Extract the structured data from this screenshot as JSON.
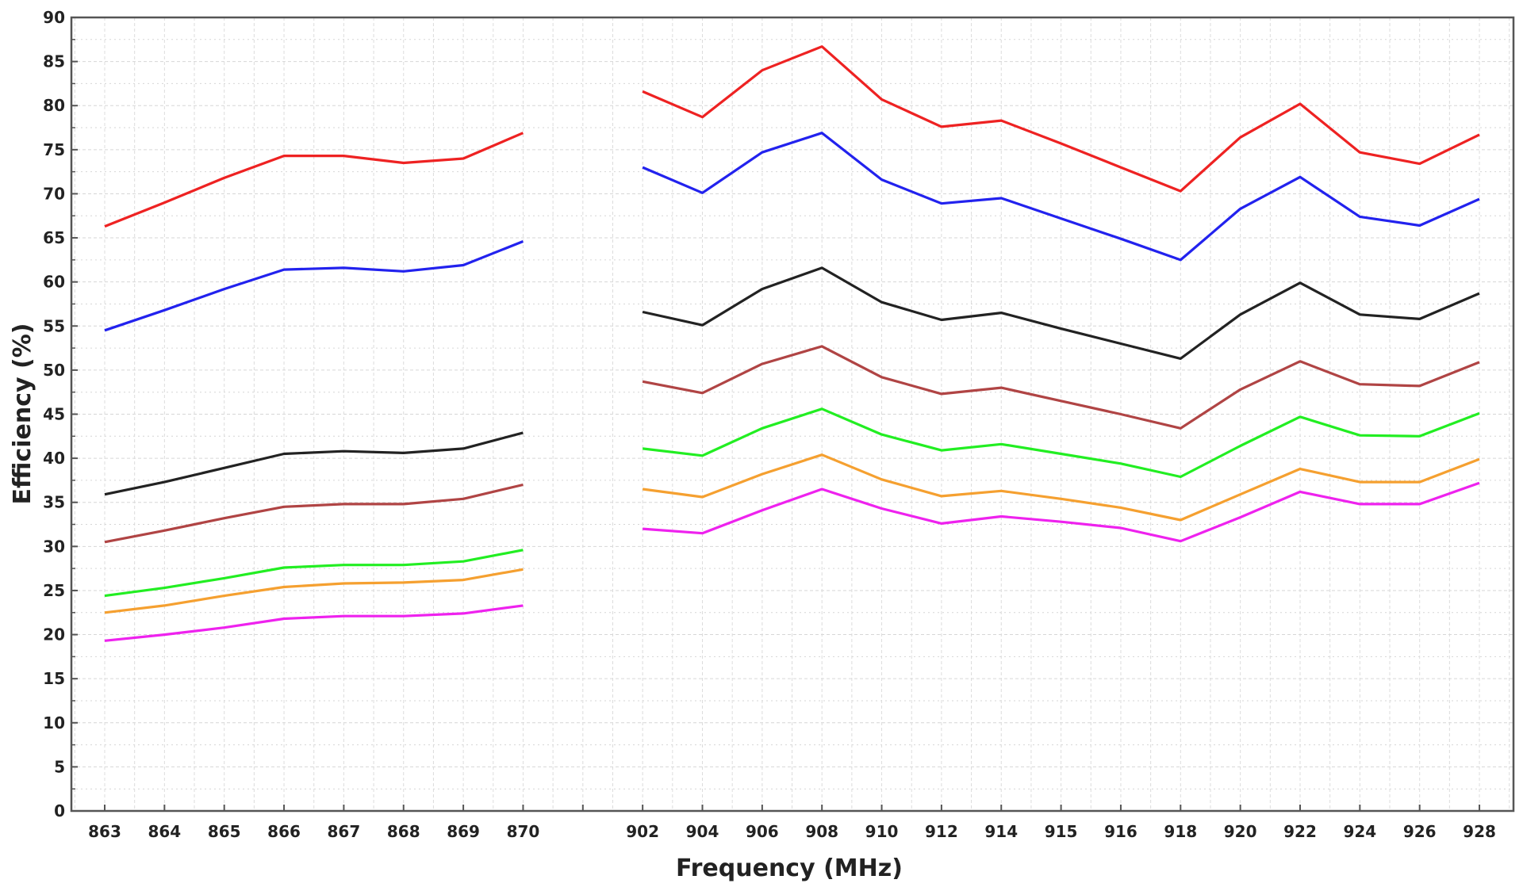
{
  "chart_data": {
    "type": "line",
    "xlabel": "Frequency (MHz)",
    "ylabel": "Efficiency (%)",
    "ylim": [
      0,
      90
    ],
    "y_ticks": [
      "0",
      "5",
      "10",
      "15",
      "20",
      "25",
      "30",
      "35",
      "40",
      "45",
      "50",
      "55",
      "60",
      "65",
      "70",
      "75",
      "80",
      "85",
      "90"
    ],
    "categories": [
      "863",
      "864",
      "865",
      "866",
      "867",
      "868",
      "869",
      "870",
      "",
      "902",
      "904",
      "906",
      "908",
      "910",
      "912",
      "914",
      "915",
      "916",
      "918",
      "920",
      "922",
      "924",
      "926",
      "928"
    ],
    "grid": true,
    "legend": "none",
    "series": [
      {
        "color": "#ee2222",
        "values": [
          66.3,
          69.0,
          71.8,
          74.3,
          74.3,
          73.5,
          74.0,
          76.9,
          null,
          81.6,
          78.7,
          84.0,
          86.7,
          80.7,
          77.6,
          78.3,
          75.7,
          73.0,
          70.3,
          76.4,
          80.2,
          74.7,
          73.4,
          76.7
        ]
      },
      {
        "color": "#2222ee",
        "values": [
          54.5,
          56.8,
          59.2,
          61.4,
          61.6,
          61.2,
          61.9,
          64.6,
          null,
          73.0,
          70.1,
          74.7,
          76.9,
          71.6,
          68.9,
          69.5,
          67.2,
          64.9,
          62.5,
          68.3,
          71.9,
          67.4,
          66.4,
          69.4
        ]
      },
      {
        "color": "#222222",
        "values": [
          35.9,
          37.3,
          38.9,
          40.5,
          40.8,
          40.6,
          41.1,
          42.9,
          null,
          56.6,
          55.1,
          59.2,
          61.6,
          57.7,
          55.7,
          56.5,
          54.7,
          53.0,
          51.3,
          56.3,
          59.9,
          56.3,
          55.8,
          58.7
        ]
      },
      {
        "color": "#b04444",
        "values": [
          30.5,
          31.8,
          33.2,
          34.5,
          34.8,
          34.8,
          35.4,
          37.0,
          null,
          48.7,
          47.4,
          50.7,
          52.7,
          49.2,
          47.3,
          48.0,
          46.5,
          45.0,
          43.4,
          47.8,
          51.0,
          48.4,
          48.2,
          50.9
        ]
      },
      {
        "color": "#22ee22",
        "values": [
          24.4,
          25.3,
          26.4,
          27.6,
          27.9,
          27.9,
          28.3,
          29.6,
          null,
          41.1,
          40.3,
          43.4,
          45.6,
          42.7,
          40.9,
          41.6,
          40.5,
          39.4,
          37.9,
          41.4,
          44.7,
          42.6,
          42.5,
          45.1
        ]
      },
      {
        "color": "#f5a030",
        "values": [
          22.5,
          23.3,
          24.4,
          25.4,
          25.8,
          25.9,
          26.2,
          27.4,
          null,
          36.5,
          35.6,
          38.2,
          40.4,
          37.6,
          35.7,
          36.3,
          35.4,
          34.4,
          33.0,
          35.9,
          38.8,
          37.3,
          37.3,
          39.9
        ]
      },
      {
        "color": "#ee22ee",
        "values": [
          19.3,
          20.0,
          20.8,
          21.8,
          22.1,
          22.1,
          22.4,
          23.3,
          null,
          32.0,
          31.5,
          34.1,
          36.5,
          34.3,
          32.6,
          33.4,
          32.8,
          32.1,
          30.6,
          33.3,
          36.2,
          34.8,
          34.8,
          37.2
        ]
      }
    ]
  }
}
